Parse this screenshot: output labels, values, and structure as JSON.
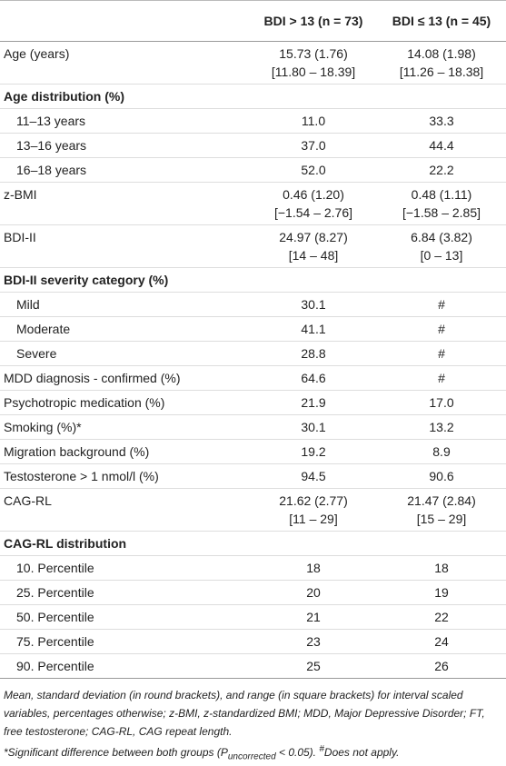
{
  "header": {
    "columns": [
      "",
      "BDI > 13 (n = 73)",
      "BDI ≤ 13 (n = 45)"
    ]
  },
  "table": {
    "rows": [
      {
        "label": "Age (years)",
        "cells": [
          [
            "15.73 (1.76)",
            "[11.80 – 18.39]"
          ],
          [
            "14.08 (1.98)",
            "[11.26 – 18.38]"
          ]
        ]
      },
      {
        "section": "Age distribution (%)"
      },
      {
        "label": "11–13 years",
        "indent": true,
        "cells": [
          [
            "11.0"
          ],
          [
            "33.3"
          ]
        ]
      },
      {
        "label": "13–16 years",
        "indent": true,
        "cells": [
          [
            "37.0"
          ],
          [
            "44.4"
          ]
        ]
      },
      {
        "label": "16–18 years",
        "indent": true,
        "cells": [
          [
            "52.0"
          ],
          [
            "22.2"
          ]
        ]
      },
      {
        "label": "z-BMI",
        "cells": [
          [
            "0.46 (1.20)",
            "[−1.54 – 2.76]"
          ],
          [
            "0.48 (1.11)",
            "[−1.58 – 2.85]"
          ]
        ]
      },
      {
        "label": "BDI-II",
        "cells": [
          [
            "24.97 (8.27)",
            "[14 – 48]"
          ],
          [
            "6.84 (3.82)",
            "[0 – 13]"
          ]
        ]
      },
      {
        "section": "BDI-II severity category (%)"
      },
      {
        "label": "Mild",
        "indent": true,
        "cells": [
          [
            "30.1"
          ],
          [
            "#"
          ]
        ]
      },
      {
        "label": "Moderate",
        "indent": true,
        "cells": [
          [
            "41.1"
          ],
          [
            "#"
          ]
        ]
      },
      {
        "label": "Severe",
        "indent": true,
        "cells": [
          [
            "28.8"
          ],
          [
            "#"
          ]
        ]
      },
      {
        "label": "MDD diagnosis - confirmed (%)",
        "cells": [
          [
            "64.6"
          ],
          [
            "#"
          ]
        ]
      },
      {
        "label": "Psychotropic medication (%)",
        "cells": [
          [
            "21.9"
          ],
          [
            "17.0"
          ]
        ]
      },
      {
        "label": "Smoking (%)*",
        "cells": [
          [
            "30.1"
          ],
          [
            "13.2"
          ]
        ]
      },
      {
        "label": "Migration background (%)",
        "cells": [
          [
            "19.2"
          ],
          [
            "8.9"
          ]
        ]
      },
      {
        "label": "Testosterone > 1 nmol/l (%)",
        "cells": [
          [
            "94.5"
          ],
          [
            "90.6"
          ]
        ]
      },
      {
        "label": "CAG-RL",
        "cells": [
          [
            "21.62 (2.77)",
            "[11 – 29]"
          ],
          [
            "21.47 (2.84)",
            "[15 – 29]"
          ]
        ]
      },
      {
        "section": "CAG-RL distribution"
      },
      {
        "label": "10. Percentile",
        "indent": true,
        "cells": [
          [
            "18"
          ],
          [
            "18"
          ]
        ]
      },
      {
        "label": "25. Percentile",
        "indent": true,
        "cells": [
          [
            "20"
          ],
          [
            "19"
          ]
        ]
      },
      {
        "label": "50. Percentile",
        "indent": true,
        "cells": [
          [
            "21"
          ],
          [
            "22"
          ]
        ]
      },
      {
        "label": "75. Percentile",
        "indent": true,
        "cells": [
          [
            "23"
          ],
          [
            "24"
          ]
        ]
      },
      {
        "label": "90. Percentile",
        "indent": true,
        "cells": [
          [
            "25"
          ],
          [
            "26"
          ]
        ]
      }
    ]
  },
  "footnotes": {
    "note": "Mean, standard deviation (in round brackets), and range (in square brackets) for interval scaled variables, percentages otherwise; z-BMI, z-standardized BMI; MDD, Major Depressive Disorder; FT, free testosterone; CAG-RL, CAG repeat length.",
    "significance": [
      "*Significant difference between both groups (P",
      "uncorrected",
      " < 0.05). ",
      "#",
      "Does not apply."
    ]
  }
}
